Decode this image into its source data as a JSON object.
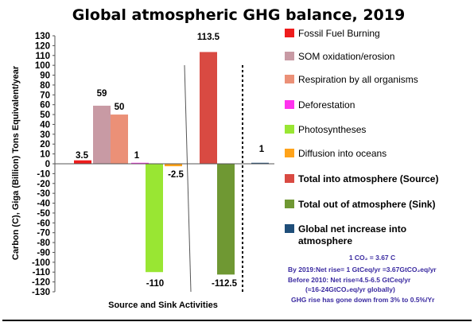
{
  "chart_data": {
    "type": "bar",
    "title": "Global atmospheric GHG balance, 2019",
    "xlabel": "Source and Sink Activities",
    "ylabel": "Carbon (C), Giga (Billion) Tons Equivalent/year",
    "ylim": [
      -130,
      130
    ],
    "ytick_step": 10,
    "grid": false,
    "legend_position": "right",
    "series": [
      {
        "name": "Fossil Fuel Burning",
        "value": 3.5,
        "label": "3.5",
        "color": "#ee1c1c",
        "bold": false
      },
      {
        "name": "SOM oxidation/erosion",
        "value": 59,
        "label": "59",
        "color": "#c89aa4",
        "bold": false
      },
      {
        "name": "Respiration by all organisms",
        "value": 50,
        "label": "50",
        "color": "#eb9077",
        "bold": false
      },
      {
        "name": "Deforestation",
        "value": 1,
        "label": "1",
        "color": "#ff33ee",
        "bold": false
      },
      {
        "name": "Photosyntheses",
        "value": -110,
        "label": "-110",
        "color": "#99e633",
        "bold": false
      },
      {
        "name": "Diffusion into oceans",
        "value": -2.5,
        "label": "-2.5",
        "color": "#ffa31a",
        "bold": false
      },
      {
        "name": "Total into atmosphere (Source)",
        "value": 113.5,
        "label": "113.5",
        "color": "#d94a42",
        "bold": true
      },
      {
        "name": "Total out of atmosphere (Sink)",
        "value": -112.5,
        "label": "-112.5",
        "color": "#6f9833",
        "bold": true
      },
      {
        "name": "Global net increase into atmosphere",
        "value": 1,
        "label": "1",
        "color": "#1f4e79",
        "bold": true
      }
    ],
    "notes": [
      "1 CO₂ = 3.67 C",
      "By  2019:Net rise= 1 GtCeq/yr =3.67GtCO₂eq/yr",
      "Before 2010: Net rise=4.5-6.5 GtCeq/yr",
      "(≈16-24GtCO₂eq/yr globally)",
      "GHG rise has gone down from 3% to 0.5%/Yr"
    ]
  }
}
